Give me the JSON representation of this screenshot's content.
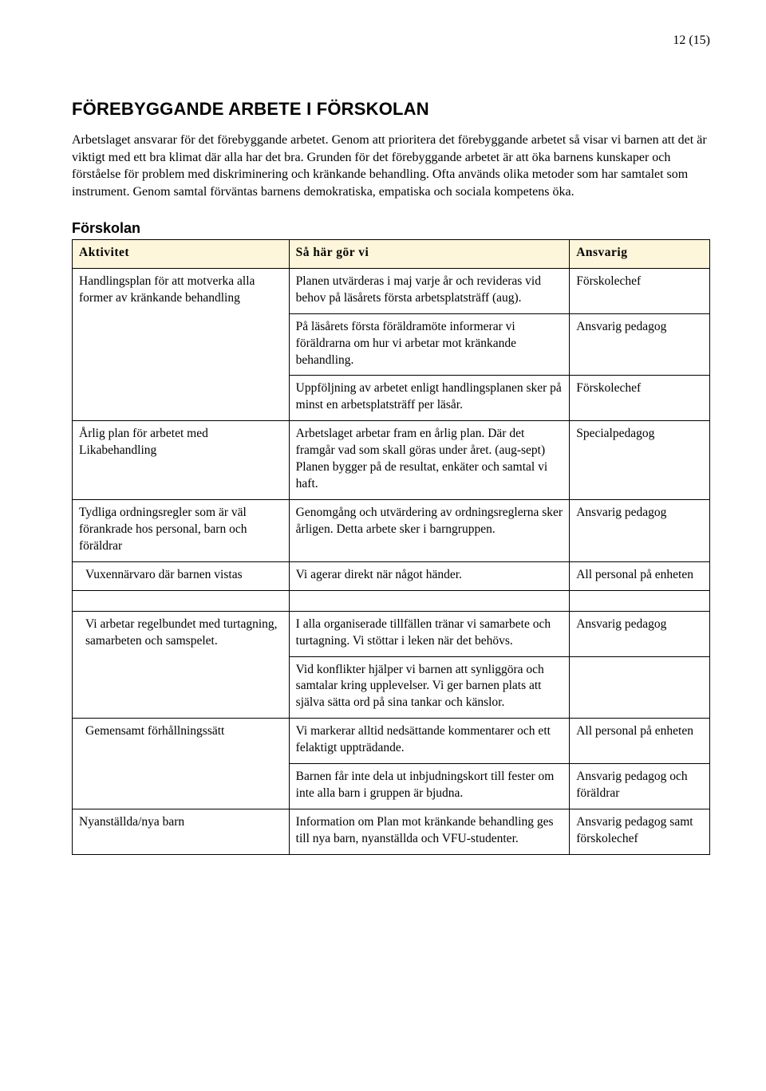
{
  "page_number": "12 (15)",
  "heading": "FÖREBYGGANDE ARBETE I FÖRSKOLAN",
  "intro": "Arbetslaget ansvarar för det förebyggande arbetet. Genom att prioritera det förebyggande arbetet så visar vi barnen att det är viktigt med ett bra klimat där alla har det bra. Grunden för det förebyggande arbetet är att öka barnens kunskaper och förståelse för problem med diskriminering och kränkande behandling. Ofta används olika metoder som har samtalet som instrument. Genom samtal förväntas barnens demokratiska, empatiska och sociala kompetens öka.",
  "subheading": "Förskolan",
  "table": {
    "headers": [
      "Aktivitet",
      "Så här gör vi",
      "Ansvarig"
    ],
    "rows": [
      {
        "c1": "Handlingsplan för att motverka alla former av kränkande behandling",
        "c2": "Planen utvärderas i maj varje år och revideras vid behov på läsårets första arbetsplatsträff (aug).",
        "c3": "Förskolechef",
        "c1_open_bot": true
      },
      {
        "c1": "",
        "c2": "På läsårets första föräldramöte informerar vi föräldrarna om hur vi arbetar mot kränkande behandling.",
        "c3": "Ansvarig pedagog",
        "c1_open_top": true,
        "c1_open_bot": true
      },
      {
        "c1": "",
        "c2": "Uppföljning av arbetet enligt handlingsplanen sker på minst en arbetsplatsträff per läsår.",
        "c3": "Förskolechef",
        "c1_open_top": true
      },
      {
        "c1": "Årlig plan för arbetet med Likabehandling",
        "c2": "Arbetslaget arbetar fram en årlig plan. Där det framgår vad som skall göras under året. (aug-sept) Planen bygger på de resultat, enkäter och samtal vi haft.",
        "c3": "Specialpedagog"
      },
      {
        "c1": "Tydliga ordningsregler som är väl förankrade hos personal, barn och föräldrar",
        "c2": "Genomgång och utvärdering av ordningsreglerna sker årligen. Detta arbete sker i barngruppen.",
        "c3": "Ansvarig pedagog"
      },
      {
        "c1": "Vuxennärvaro där barnen vistas",
        "c2": "Vi agerar direkt när något händer.",
        "c3": "All personal på enheten",
        "indent": true
      },
      {
        "gap": true
      },
      {
        "c1": "Vi arbetar regelbundet med turtagning, samarbeten och samspelet.",
        "c2": "I alla organiserade tillfällen tränar vi samarbete och turtagning. Vi stöttar i leken när det behövs.",
        "c3": "Ansvarig pedagog",
        "indent": true,
        "c1_open_bot": true
      },
      {
        "c1": "",
        "c2": "Vid konflikter hjälper vi barnen att synliggöra och samtalar kring upplevelser. Vi ger barnen plats att själva sätta ord på sina tankar och känslor.",
        "c3": "",
        "c1_open_top": true
      },
      {
        "c1": "Gemensamt förhållningssätt",
        "c2": "Vi markerar alltid nedsättande kommentarer och ett felaktigt uppträdande.",
        "c3": "All personal på enheten",
        "indent": true,
        "c1_open_bot": true
      },
      {
        "c1": "",
        "c2": "Barnen får inte dela ut inbjudningskort till fester om inte alla barn i gruppen är bjudna.",
        "c3": "Ansvarig pedagog och föräldrar",
        "c1_open_top": true
      },
      {
        "c1": "Nyanställda/nya barn",
        "c2": "Information om Plan mot kränkande behandling ges till nya barn, nyanställda och VFU-studenter.",
        "c3": "Ansvarig pedagog samt förskolechef"
      }
    ]
  }
}
